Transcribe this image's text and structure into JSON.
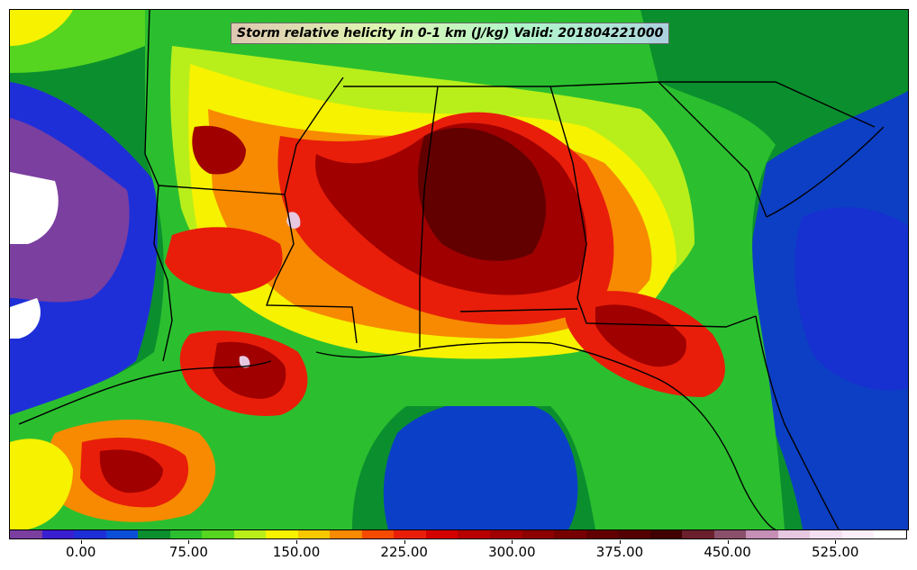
{
  "title": "Storm relative helicity in 0-1 km (J/kg) Valid: 201804221000",
  "colorbar": {
    "colors": [
      "#7b3fa0",
      "#3a1fd1",
      "#1f2fd8",
      "#0b4fd8",
      "#0b8f2f",
      "#2bbf2f",
      "#55d51f",
      "#b8ef1a",
      "#f6f200",
      "#f7c800",
      "#f78a00",
      "#f54a00",
      "#e81e0a",
      "#d40000",
      "#b80000",
      "#a00000",
      "#8c0000",
      "#760000",
      "#620000",
      "#540000",
      "#400000",
      "#6a1f2c",
      "#8a4f6a",
      "#c58fb6",
      "#e6c8e0",
      "#f3dff0",
      "#fbeefa",
      "#ffffff"
    ],
    "labels": [
      "0.00",
      "75.00",
      "150.00",
      "225.00",
      "300.00",
      "375.00",
      "450.00",
      "525.00"
    ],
    "label_values": [
      0,
      75,
      150,
      225,
      300,
      375,
      450,
      525
    ],
    "min": -50,
    "max": 575
  }
}
